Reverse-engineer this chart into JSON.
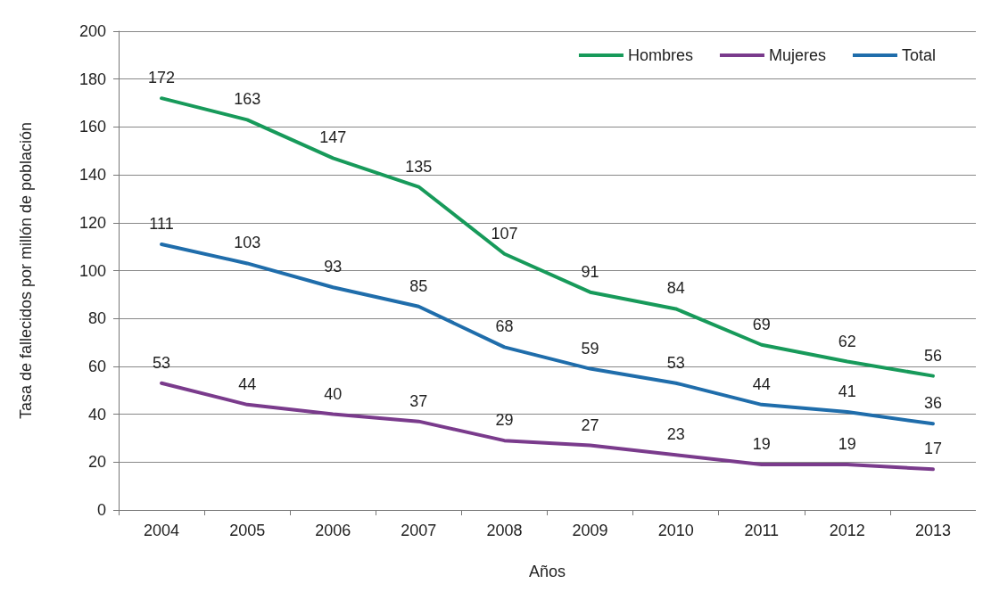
{
  "chart_data": {
    "type": "line",
    "xlabel": "Años",
    "ylabel": "Tasa de fallecidos por millón de población",
    "categories": [
      "2004",
      "2005",
      "2006",
      "2007",
      "2008",
      "2009",
      "2010",
      "2011",
      "2012",
      "2013"
    ],
    "series": [
      {
        "name": "Hombres",
        "color": "#179a5a",
        "values": [
          172,
          163,
          147,
          135,
          107,
          91,
          84,
          69,
          62,
          56
        ]
      },
      {
        "name": "Mujeres",
        "color": "#7a3b8c",
        "values": [
          53,
          44,
          40,
          37,
          29,
          27,
          23,
          19,
          19,
          17
        ]
      },
      {
        "name": "Total",
        "color": "#1f6dab",
        "values": [
          111,
          103,
          93,
          85,
          68,
          59,
          53,
          44,
          41,
          36
        ]
      }
    ],
    "ylim": [
      0,
      200
    ],
    "yticks": [
      0,
      20,
      40,
      60,
      80,
      100,
      120,
      140,
      160,
      180,
      200
    ],
    "grid": "y",
    "legend": "top right",
    "marker": "none",
    "line_style": "solid",
    "data_labels": true
  }
}
